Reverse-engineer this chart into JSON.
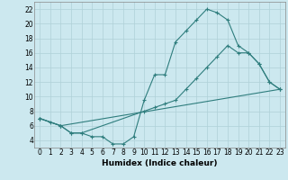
{
  "line1_x": [
    0,
    1,
    2,
    3,
    4,
    5,
    6,
    7,
    8,
    9,
    10,
    11,
    12,
    13,
    14,
    15,
    16,
    17,
    18,
    19,
    20,
    21,
    22,
    23
  ],
  "line1_y": [
    7,
    6.5,
    6,
    5,
    5,
    4.5,
    4.5,
    3.5,
    3.5,
    4.5,
    9.5,
    13,
    13,
    17.5,
    19,
    20.5,
    22,
    21.5,
    20.5,
    17,
    16,
    14.5,
    12,
    11
  ],
  "line2_x": [
    0,
    2,
    3,
    4,
    10,
    11,
    12,
    13,
    14,
    15,
    16,
    17,
    18,
    19,
    20,
    21,
    22,
    23
  ],
  "line2_y": [
    7,
    6,
    5,
    5,
    8,
    8.5,
    9,
    9.5,
    11,
    12.5,
    14,
    15.5,
    17,
    16,
    16,
    14.5,
    12,
    11
  ],
  "line3_x": [
    0,
    2,
    23
  ],
  "line3_y": [
    7,
    6,
    11
  ],
  "line_color": "#2e7d7d",
  "bg_color": "#cce8ef",
  "grid_color": "#afd1d8",
  "xlabel": "Humidex (Indice chaleur)",
  "xlim": [
    -0.5,
    23.5
  ],
  "ylim": [
    3,
    23
  ],
  "xticks": [
    0,
    1,
    2,
    3,
    4,
    5,
    6,
    7,
    8,
    9,
    10,
    11,
    12,
    13,
    14,
    15,
    16,
    17,
    18,
    19,
    20,
    21,
    22,
    23
  ],
  "yticks": [
    4,
    6,
    8,
    10,
    12,
    14,
    16,
    18,
    20,
    22
  ],
  "tick_fontsize": 5.5,
  "xlabel_fontsize": 6.5
}
